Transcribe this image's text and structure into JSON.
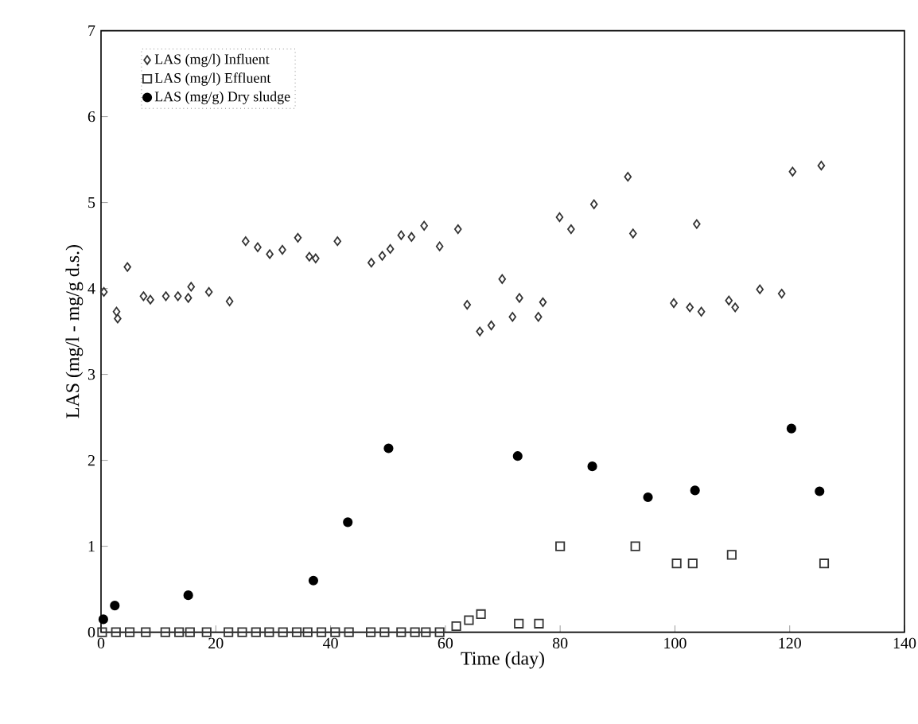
{
  "chart_data": {
    "type": "scatter",
    "xlabel": "Time (day)",
    "ylabel": "LAS (mg/l - mg/g d.s.)",
    "xlim": [
      0,
      140
    ],
    "xticks": [
      0,
      20,
      40,
      60,
      80,
      100,
      120,
      140
    ],
    "ylim": [
      0,
      7
    ],
    "yticks": [
      0,
      1,
      2,
      3,
      4,
      5,
      6,
      7
    ],
    "grid": false,
    "legend": "top left",
    "series": [
      {
        "name": "LAS (mg/l) Influent",
        "color": "#333333",
        "marker": "diamond",
        "x": [
          0.5,
          2.7,
          2.9,
          4.6,
          7.4,
          8.6,
          11.3,
          13.4,
          15.2,
          15.7,
          18.8,
          22.4,
          25.2,
          27.3,
          29.4,
          31.6,
          34.3,
          36.3,
          37.4,
          41.2,
          47.1,
          49.0,
          50.4,
          52.3,
          54.1,
          56.3,
          59.0,
          62.2,
          63.8,
          66.0,
          68.0,
          69.9,
          71.7,
          72.9,
          76.2,
          77.0,
          79.9,
          81.9,
          85.9,
          91.8,
          92.7,
          99.8,
          102.6,
          103.8,
          104.6,
          109.4,
          110.5,
          114.8,
          118.6,
          120.5,
          125.5
        ],
        "values": [
          3.96,
          3.73,
          3.65,
          4.25,
          3.91,
          3.87,
          3.91,
          3.91,
          3.89,
          4.02,
          3.96,
          3.85,
          4.55,
          4.48,
          4.4,
          4.45,
          4.59,
          4.37,
          4.35,
          4.55,
          4.3,
          4.38,
          4.46,
          4.62,
          4.6,
          4.73,
          4.49,
          4.69,
          3.81,
          3.5,
          3.57,
          4.11,
          3.67,
          3.89,
          3.67,
          3.84,
          4.83,
          4.69,
          4.98,
          5.3,
          4.64,
          3.83,
          3.78,
          4.75,
          3.73,
          3.86,
          3.78,
          3.99,
          3.94,
          5.36,
          5.43
        ]
      },
      {
        "name": "LAS (mg/l) Effluent",
        "color": "#333333",
        "marker": "square",
        "x": [
          0.2,
          2.6,
          5.0,
          7.8,
          11.2,
          13.6,
          15.5,
          18.4,
          22.2,
          24.6,
          27.0,
          29.3,
          31.7,
          34.1,
          36.0,
          38.4,
          40.8,
          43.2,
          47.0,
          49.4,
          52.3,
          54.7,
          56.6,
          59.0,
          61.9,
          64.1,
          66.2,
          72.8,
          76.3,
          80.0,
          93.1,
          100.3,
          103.1,
          109.9,
          126.0
        ],
        "values": [
          0,
          0,
          0,
          0,
          0,
          0,
          0,
          0,
          0,
          0,
          0,
          0,
          0,
          0,
          0,
          0,
          0,
          0,
          0,
          0,
          0,
          0,
          0,
          0,
          0.07,
          0.14,
          0.21,
          0.1,
          0.1,
          1.0,
          1.0,
          0.8,
          0.8,
          0.9,
          0.8
        ]
      },
      {
        "name": "LAS (mg/g) Dry sludge",
        "color": "#000000",
        "marker": "circle",
        "x": [
          0.4,
          2.4,
          15.2,
          37.0,
          43.0,
          50.1,
          72.6,
          85.6,
          95.3,
          103.5,
          120.3,
          125.2
        ],
        "values": [
          0.15,
          0.31,
          0.43,
          0.6,
          1.28,
          2.14,
          2.05,
          1.93,
          1.57,
          1.65,
          2.37,
          1.64
        ]
      }
    ]
  }
}
